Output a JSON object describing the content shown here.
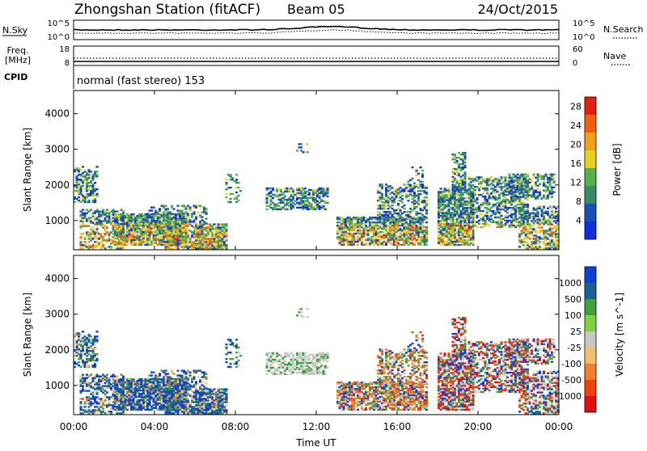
{
  "header": {
    "station_title": "Zhongshan Station (fitACF)",
    "beam": "Beam 05",
    "date": "24/Oct/2015",
    "cpid_label": "CPID",
    "cpid_text": "normal (fast stereo) 153"
  },
  "strip_panels": {
    "nsky": {
      "left_label": "N.Sky",
      "right_label": "N.Search",
      "left_top_tick": "10^5",
      "left_bottom_tick": "10^0",
      "right_top_tick": "10^5",
      "right_bottom_tick": "10^0"
    },
    "freq": {
      "left_label_line1": "Freq.",
      "left_label_line2": "[MHz]",
      "right_label": "Nave",
      "left_top_tick": "18",
      "left_bottom_tick": "8",
      "right_top_tick": "60",
      "right_bottom_tick": "0"
    }
  },
  "colors": {
    "power_scale": [
      "#1030e0",
      "#1a4fb3",
      "#3a8a6a",
      "#58b048",
      "#e8d020",
      "#f0a020",
      "#f06010",
      "#e02010"
    ],
    "velocity_scale": [
      "#1040d0",
      "#1a6090",
      "#40a040",
      "#80d040",
      "#c8c8c0",
      "#f0c070",
      "#f08030",
      "#f04010",
      "#e01010"
    ],
    "background_noise": "#fff"
  },
  "chart_data": [
    {
      "type": "heatmap",
      "panel": "power",
      "ylabel": "Slant Range [km]",
      "xlabel": "Time UT",
      "x_ticks": [
        "00:00",
        "04:00",
        "08:00",
        "12:00",
        "16:00",
        "20:00",
        "00:00"
      ],
      "x_range_hours": [
        0,
        24
      ],
      "y_ticks": [
        1000,
        2000,
        3000,
        4000
      ],
      "y_range": [
        180,
        4650
      ],
      "colorbar_label": "Power [dB]",
      "colorbar_ticks": [
        "4",
        "8",
        "12",
        "16",
        "20",
        "24",
        "28"
      ],
      "colorbar_range": [
        0,
        30
      ]
    },
    {
      "type": "heatmap",
      "panel": "velocity",
      "ylabel": "Slant Range [km]",
      "xlabel": "Time UT",
      "x_ticks": [
        "00:00",
        "04:00",
        "08:00",
        "12:00",
        "16:00",
        "20:00",
        "00:00"
      ],
      "x_range_hours": [
        0,
        24
      ],
      "y_ticks": [
        1000,
        2000,
        3000,
        4000
      ],
      "y_range": [
        180,
        4650
      ],
      "colorbar_label": "Velocity [m s^-1]",
      "colorbar_ticks": [
        "1000",
        "500",
        "100",
        "25",
        "-25",
        "-100",
        "-500",
        "-1000"
      ]
    }
  ]
}
